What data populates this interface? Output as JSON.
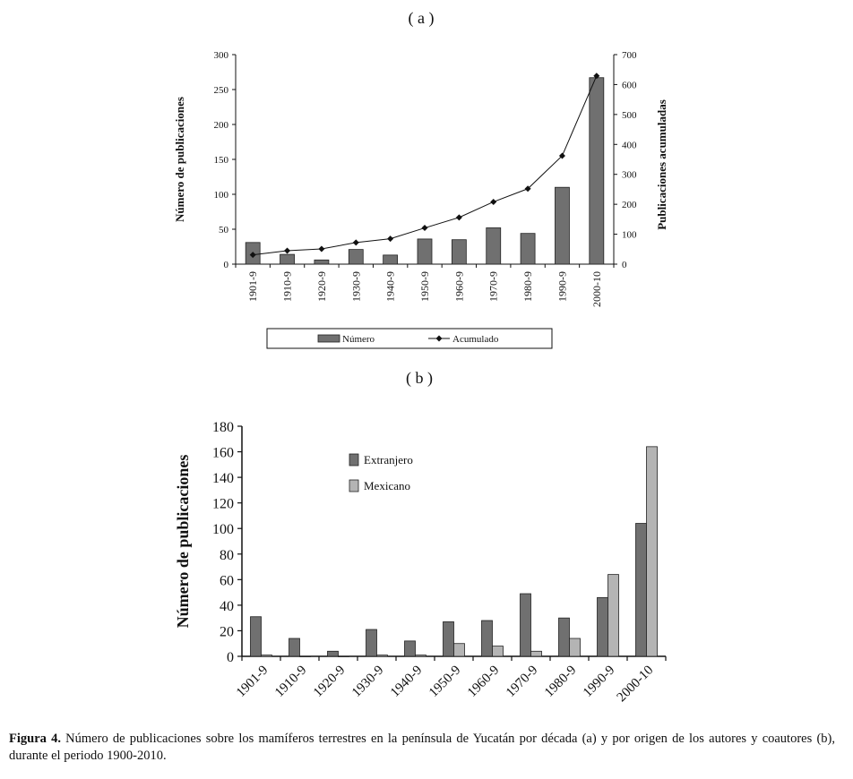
{
  "colors": {
    "bar_dark": "#707070",
    "bar_light": "#b4b4b4",
    "line": "#111111",
    "axis": "#111111"
  },
  "panels": {
    "a": "( a )",
    "b": "( b )"
  },
  "caption": {
    "lead": "Figura 4.",
    "text": " Número de publicaciones sobre los mamíferos terrestres en la península de Yucatán por década (a) y por origen de los autores y coautores (b), durante el periodo 1900-2010."
  },
  "chart_data": [
    {
      "type": "bar+line",
      "categories": [
        "1901-9",
        "1910-9",
        "1920-9",
        "1930-9",
        "1940-9",
        "1950-9",
        "1960-9",
        "1970-9",
        "1980-9",
        "1990-9",
        "2000-10"
      ],
      "series": [
        {
          "name": "Número",
          "kind": "bar",
          "axis": "left",
          "values": [
            31,
            14,
            6,
            21,
            13,
            36,
            35,
            52,
            44,
            110,
            267
          ]
        },
        {
          "name": "Acumulado",
          "kind": "line",
          "axis": "right",
          "values": [
            31,
            45,
            51,
            72,
            85,
            121,
            156,
            208,
            252,
            362,
            629
          ]
        }
      ],
      "ylabel": "Número de publicaciones",
      "y2label": "Publicaciones acumuladas",
      "ylim": [
        0,
        300
      ],
      "yticks": [
        0,
        50,
        100,
        150,
        200,
        250,
        300
      ],
      "y2lim": [
        0,
        700
      ],
      "y2ticks": [
        0,
        100,
        200,
        300,
        400,
        500,
        600,
        700
      ],
      "legend": [
        "Número",
        "Acumulado"
      ],
      "legend_position": "bottom"
    },
    {
      "type": "bar",
      "categories": [
        "1901-9",
        "1910-9",
        "1920-9",
        "1930-9",
        "1940-9",
        "1950-9",
        "1960-9",
        "1970-9",
        "1980-9",
        "1990-9",
        "2000-10"
      ],
      "series": [
        {
          "name": "Extranjero",
          "values": [
            31,
            14,
            4,
            21,
            12,
            27,
            28,
            49,
            30,
            46,
            104
          ]
        },
        {
          "name": "Mexicano",
          "values": [
            1,
            0,
            0,
            1,
            1,
            10,
            8,
            4,
            14,
            64,
            164
          ]
        }
      ],
      "ylabel": "Número de publicaciones",
      "ylim": [
        0,
        180
      ],
      "yticks": [
        0,
        20,
        40,
        60,
        80,
        100,
        120,
        140,
        160,
        180
      ],
      "legend": [
        "Extranjero",
        "Mexicano"
      ],
      "legend_position": "top-left"
    }
  ]
}
